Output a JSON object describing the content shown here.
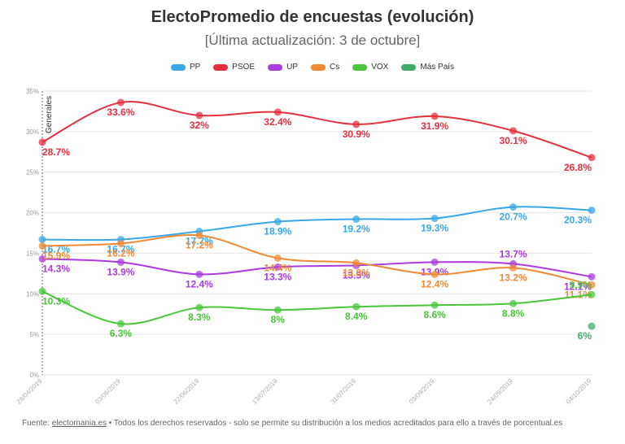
{
  "chart_data": {
    "type": "line",
    "title": "ElectoPromedio de encuestas (evolución)",
    "subtitle": "[Última actualización: 3 de octubre]",
    "xlabel": "",
    "ylabel": "",
    "ylim": [
      0,
      35
    ],
    "yticks": [
      "0%",
      "5%",
      "10%",
      "15%",
      "20%",
      "25%",
      "30%",
      "35%"
    ],
    "x": [
      "28/04/2019",
      "03/06/2019",
      "22/06/2019",
      "13/07/2019",
      "31/07/2019",
      "03/09/2019",
      "24/09/2019",
      "04/10/2019"
    ],
    "annotation": "Generales",
    "series": [
      {
        "name": "PP",
        "color": "#3aa7e6",
        "values": [
          16.7,
          16.7,
          17.7,
          18.9,
          19.2,
          19.3,
          20.7,
          20.3
        ],
        "labels": [
          "16.7%",
          "16.7%",
          "17.7%",
          "18.9%",
          "19.2%",
          "19.3%",
          "20.7%",
          "20.3%"
        ]
      },
      {
        "name": "PSOE",
        "color": "#e4303f",
        "values": [
          28.7,
          33.6,
          32,
          32.4,
          30.9,
          31.9,
          30.1,
          26.8
        ],
        "labels": [
          "28.7%",
          "33.6%",
          "32%",
          "32.4%",
          "30.9%",
          "31.9%",
          "30.1%",
          "26.8%"
        ]
      },
      {
        "name": "UP",
        "color": "#a93be0",
        "values": [
          14.3,
          13.9,
          12.4,
          13.3,
          13.5,
          13.9,
          13.7,
          12.1
        ],
        "labels": [
          "14.3%",
          "13.9%",
          "12.4%",
          "13.3%",
          "13.5%",
          "13.9%",
          "13.7%",
          "12.1%"
        ]
      },
      {
        "name": "Cs",
        "color": "#f08a34",
        "values": [
          15.9,
          16.2,
          17.2,
          14.4,
          13.8,
          12.4,
          13.2,
          11.1
        ],
        "labels": [
          "15.9%",
          "16.2%",
          "17.2%",
          "14.4%",
          "13.8%",
          "12.4%",
          "13.2%",
          "11.1%"
        ]
      },
      {
        "name": "VOX",
        "color": "#4ac53c",
        "values": [
          10.3,
          6.3,
          8.3,
          8,
          8.4,
          8.6,
          8.8,
          9.9
        ],
        "labels": [
          "10.3%",
          "6.3%",
          "8.3%",
          "8%",
          "8.4%",
          "8.6%",
          "8.8%",
          "9.9%"
        ]
      },
      {
        "name": "Más País",
        "color": "#3fae6b",
        "values": [
          null,
          null,
          null,
          null,
          null,
          null,
          null,
          6
        ],
        "labels": [
          "",
          "",
          "",
          "",
          "",
          "",
          "",
          "6%"
        ]
      }
    ]
  },
  "footer": {
    "prefix": "Fuente: ",
    "link": "electomania.es",
    "rest": " • Todos los derechos reservados - solo se permite su distribución a los medios acreditados para ello a través de porcentual.es"
  }
}
